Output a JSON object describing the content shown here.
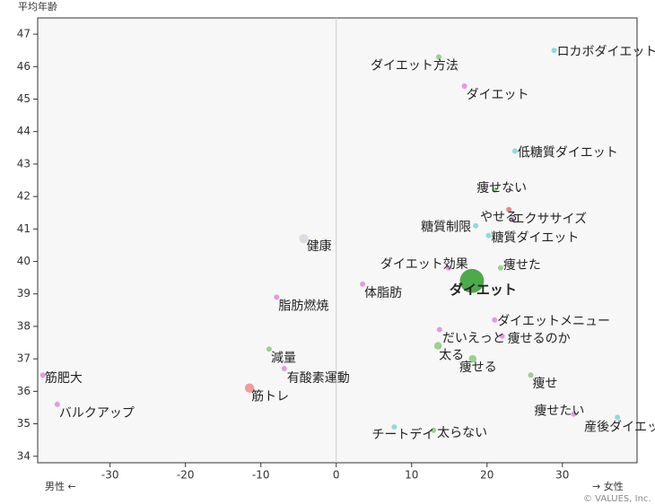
{
  "chart_data": {
    "type": "scatter",
    "y_label": "平均年齢",
    "x_label_left": "男性 ←",
    "x_label_right": "→ 女性",
    "credit": "© VALUES, Inc.",
    "xlim": [
      -39.6,
      39.9
    ],
    "ylim": [
      33.8,
      47.5
    ],
    "xticks": [
      -30,
      -20,
      -10,
      0,
      10,
      20,
      30
    ],
    "yticks": [
      34,
      35,
      36,
      37,
      38,
      39,
      40,
      41,
      42,
      43,
      44,
      45,
      46,
      47
    ],
    "points": [
      {
        "label": "ロカボダイエット",
        "x": 28.9,
        "y": 46.5,
        "size": 1,
        "color": "#7fd3d8"
      },
      {
        "label": "ダイエット方法",
        "x": 13.6,
        "y": 46.3,
        "size": 1,
        "color": "#8cc97f"
      },
      {
        "label": "ダイエット",
        "x": 17.0,
        "y": 45.4,
        "size": 1,
        "color": "#e08ad8"
      },
      {
        "label": "低糖質ダイエット",
        "x": 23.7,
        "y": 43.4,
        "size": 1,
        "color": "#7fd3d8"
      },
      {
        "label": "痩せない",
        "x": 21.0,
        "y": 42.2,
        "size": 1,
        "color": "#8cc97f"
      },
      {
        "label": "やせる",
        "x": 22.9,
        "y": 41.6,
        "size": 1,
        "color": "#ee7070"
      },
      {
        "label": "エクササイズ",
        "x": 23.3,
        "y": 41.3,
        "size": 1,
        "color": "#e08ad8"
      },
      {
        "label": "糖質制限",
        "x": 18.5,
        "y": 41.1,
        "size": 1,
        "color": "#7fd3d8"
      },
      {
        "label": "糖質ダイエット",
        "x": 20.2,
        "y": 40.8,
        "size": 1,
        "color": "#7fd3d8"
      },
      {
        "label": "健康",
        "x": -4.3,
        "y": 40.7,
        "size": 3,
        "color": "#d5d9e0"
      },
      {
        "label": "ダイエット効果",
        "x": 14.9,
        "y": 39.8,
        "size": 1,
        "color": "#e08ad8"
      },
      {
        "label": "痩せた",
        "x": 21.8,
        "y": 39.8,
        "size": 1,
        "color": "#8cc97f"
      },
      {
        "label": "ダイエット",
        "x": 18.0,
        "y": 39.4,
        "size": 20,
        "color": "#2e9b2e"
      },
      {
        "label": "体脂肪",
        "x": 3.5,
        "y": 39.3,
        "size": 1,
        "color": "#e08ad8"
      },
      {
        "label": "脂肪燃焼",
        "x": -7.9,
        "y": 38.9,
        "size": 1,
        "color": "#e08ad8"
      },
      {
        "label": "ダイエットメニュー",
        "x": 21.0,
        "y": 38.2,
        "size": 1,
        "color": "#e08ad8"
      },
      {
        "label": "だいえっと",
        "x": 13.7,
        "y": 37.9,
        "size": 1,
        "color": "#e08ad8"
      },
      {
        "label": "痩せるのか",
        "x": 22.0,
        "y": 37.7,
        "size": 1,
        "color": "#e08ad8"
      },
      {
        "label": "太る",
        "x": 13.5,
        "y": 37.4,
        "size": 2,
        "color": "#8cc97f"
      },
      {
        "label": "痩せる",
        "x": 18.1,
        "y": 37.0,
        "size": 2,
        "color": "#8cc97f"
      },
      {
        "label": "減量",
        "x": -8.9,
        "y": 37.3,
        "size": 1,
        "color": "#8cc97f"
      },
      {
        "label": "有酸素運動",
        "x": -6.9,
        "y": 36.7,
        "size": 1,
        "color": "#e08ad8"
      },
      {
        "label": "筋肥大",
        "x": -38.9,
        "y": 36.5,
        "size": 1,
        "color": "#e08ad8"
      },
      {
        "label": "筋トレ",
        "x": -11.5,
        "y": 36.1,
        "size": 3,
        "color": "#f28a8a"
      },
      {
        "label": "痩せ",
        "x": 25.8,
        "y": 36.5,
        "size": 1,
        "color": "#8cc97f"
      },
      {
        "label": "バルクアップ",
        "x": -37.0,
        "y": 35.6,
        "size": 1,
        "color": "#e08ad8"
      },
      {
        "label": "痩せたい",
        "x": 31.5,
        "y": 35.3,
        "size": 1,
        "color": "#e08ad8"
      },
      {
        "label": "産後ダイエット",
        "x": 37.3,
        "y": 35.2,
        "size": 1,
        "color": "#7fd3d8"
      },
      {
        "label": "チートデイ",
        "x": 7.7,
        "y": 34.9,
        "size": 1,
        "color": "#7fd3d8"
      },
      {
        "label": "太らない",
        "x": 12.9,
        "y": 34.8,
        "size": 1,
        "color": "#8cc97f"
      }
    ]
  }
}
